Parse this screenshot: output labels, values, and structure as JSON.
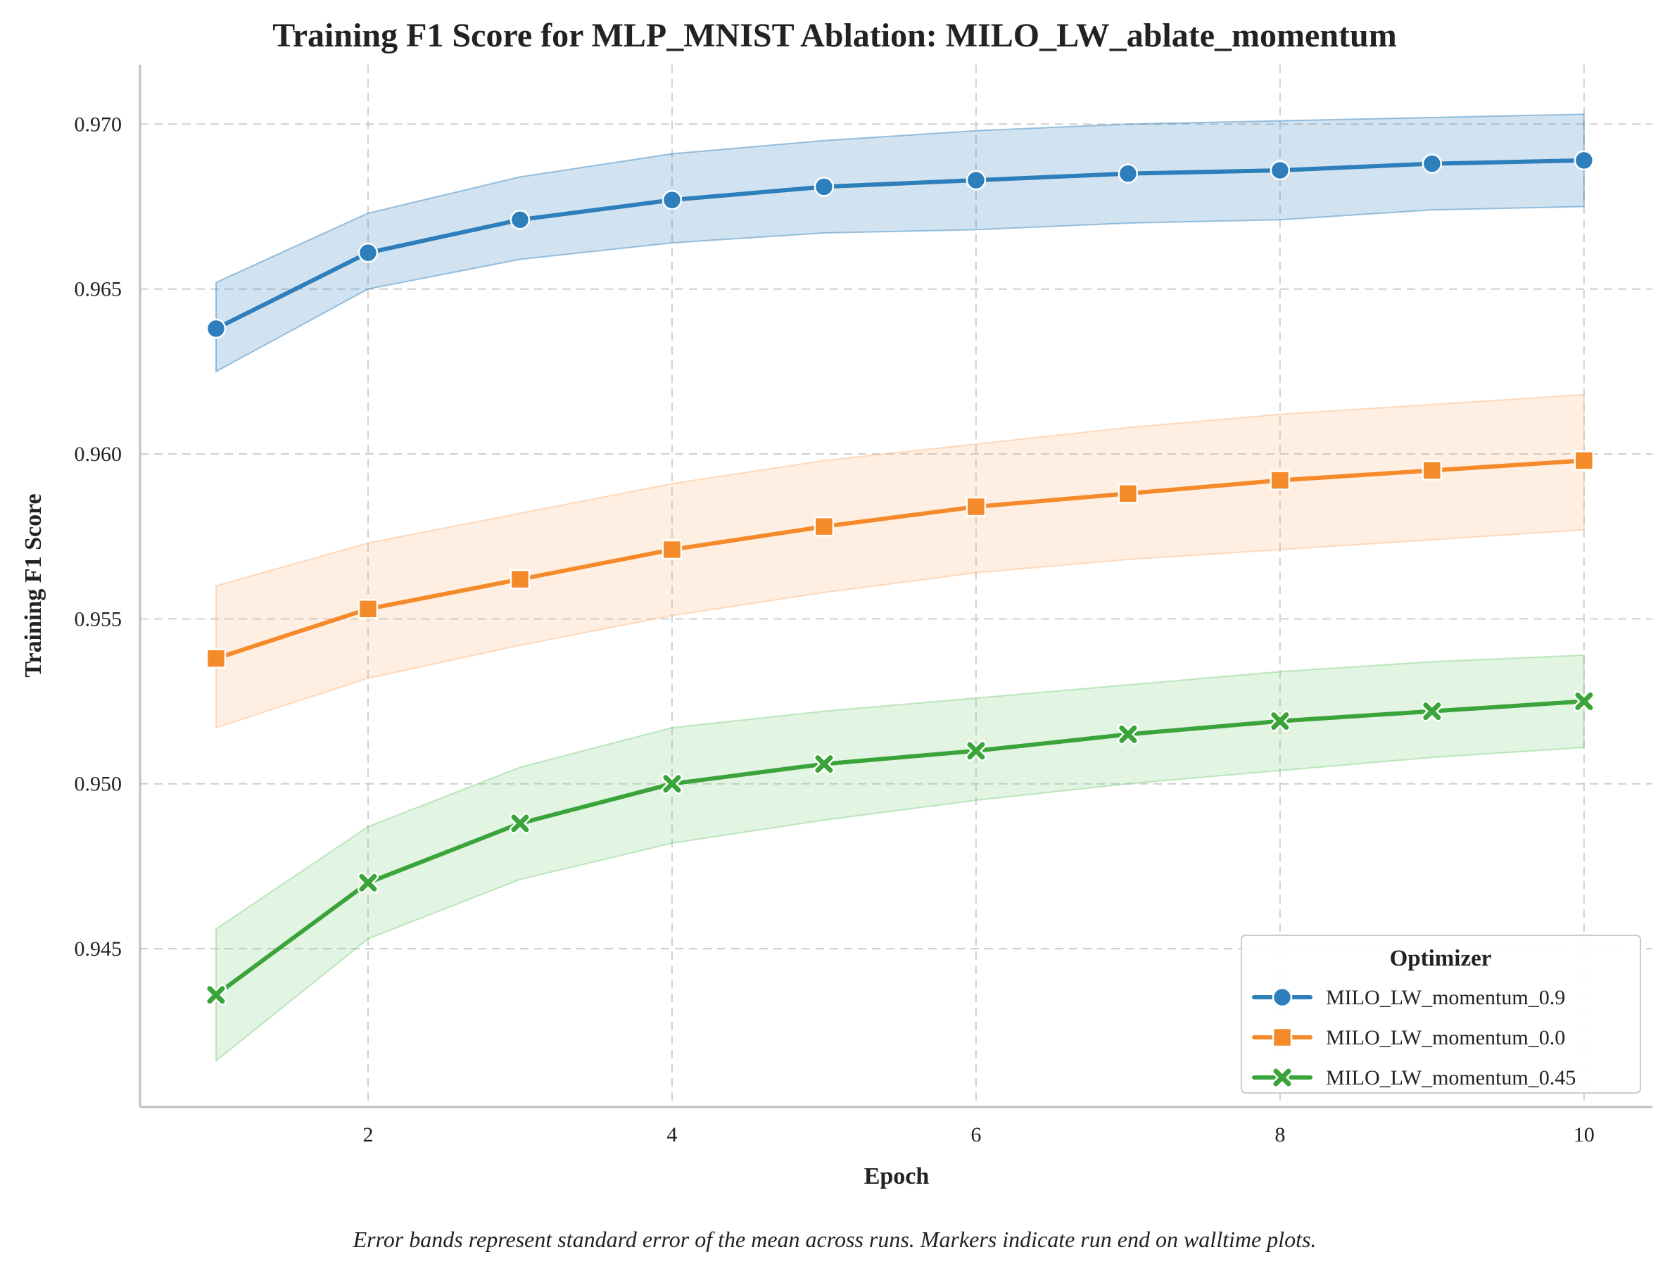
{
  "chart_data": {
    "type": "line",
    "title": "Training F1 Score for MLP_MNIST Ablation: MILO_LW_ablate_momentum",
    "xlabel": "Epoch",
    "ylabel": "Training F1 Score",
    "caption": "Error bands represent standard error of the mean across runs. Markers indicate run end on walltime plots.",
    "xlim": [
      0.5,
      10.45
    ],
    "ylim": [
      0.9402,
      0.9718
    ],
    "xticks": [
      2,
      4,
      6,
      8,
      10
    ],
    "xtick_labels": [
      "2",
      "4",
      "6",
      "8",
      "10"
    ],
    "yticks": [
      0.945,
      0.95,
      0.955,
      0.96,
      0.965,
      0.97
    ],
    "ytick_labels": [
      "0.945",
      "0.950",
      "0.955",
      "0.960",
      "0.965",
      "0.970"
    ],
    "grid": true,
    "legend": {
      "title": "Optimizer",
      "placement": "lower-right"
    },
    "x": [
      1,
      2,
      3,
      4,
      5,
      6,
      7,
      8,
      9,
      10
    ],
    "series": [
      {
        "name": "MILO_LW_momentum_0.9",
        "color": "#2e7ebc",
        "band_color": "#2e7ebc",
        "marker": "circle",
        "values": [
          0.9638,
          0.9661,
          0.9671,
          0.9677,
          0.9681,
          0.9683,
          0.9685,
          0.9686,
          0.9688,
          0.9689
        ],
        "lower": [
          0.9625,
          0.965,
          0.9659,
          0.9664,
          0.9667,
          0.9668,
          0.967,
          0.9671,
          0.9674,
          0.9675
        ],
        "upper": [
          0.9652,
          0.9673,
          0.9684,
          0.9691,
          0.9695,
          0.9698,
          0.97,
          0.9701,
          0.9702,
          0.9703
        ]
      },
      {
        "name": "MILO_LW_momentum_0.0",
        "color": "#f58a2a",
        "band_color": "#fdb47a",
        "marker": "square",
        "values": [
          0.9538,
          0.9553,
          0.9562,
          0.9571,
          0.9578,
          0.9584,
          0.9588,
          0.9592,
          0.9595,
          0.9598
        ],
        "lower": [
          0.9517,
          0.9532,
          0.9542,
          0.9551,
          0.9558,
          0.9564,
          0.9568,
          0.9571,
          0.9574,
          0.9577
        ],
        "upper": [
          0.956,
          0.9573,
          0.9582,
          0.9591,
          0.9598,
          0.9603,
          0.9608,
          0.9612,
          0.9615,
          0.9618
        ]
      },
      {
        "name": "MILO_LW_momentum_0.45",
        "color": "#3aa43a",
        "band_color": "#7ccf7c",
        "marker": "x",
        "values": [
          0.9436,
          0.947,
          0.9488,
          0.95,
          0.9506,
          0.951,
          0.9515,
          0.9519,
          0.9522,
          0.9525
        ],
        "lower": [
          0.9416,
          0.9453,
          0.9471,
          0.9482,
          0.9489,
          0.9495,
          0.95,
          0.9504,
          0.9508,
          0.9511
        ],
        "upper": [
          0.9456,
          0.9487,
          0.9505,
          0.9517,
          0.9522,
          0.9526,
          0.953,
          0.9534,
          0.9537,
          0.9539
        ]
      }
    ]
  }
}
